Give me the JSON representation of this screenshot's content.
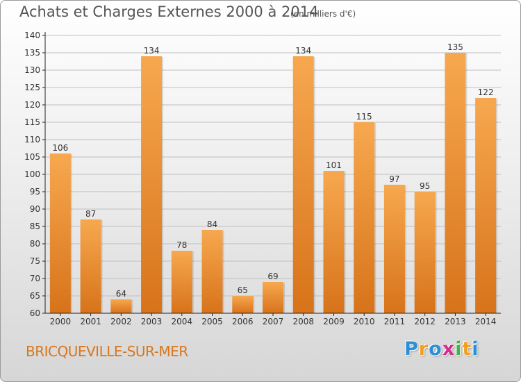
{
  "header": {
    "title": "Achats et Charges Externes 2000 à 2014",
    "subtitle": "(en milliers d'€)"
  },
  "footer": {
    "commune": "BRICQUEVILLE-SUR-MER",
    "logo_letters": [
      "P",
      "r",
      "o",
      "x",
      "i",
      "t",
      "i"
    ],
    "logo_colors": [
      "#2a8fd6",
      "#f0a020",
      "#2a8fd6",
      "#d42c8c",
      "#48b048",
      "#f0a020",
      "#2a8fd6"
    ]
  },
  "colors": {
    "bar_light": "#f7a84f",
    "bar_dark": "#d7731a",
    "axis": "#222222",
    "grid": "#bfbfbf"
  },
  "chart_data": {
    "type": "bar",
    "title": "Achats et Charges Externes 2000 à 2014",
    "subtitle": "(en milliers d'€)",
    "categories": [
      "2000",
      "2001",
      "2002",
      "2003",
      "2004",
      "2005",
      "2006",
      "2007",
      "2008",
      "2009",
      "2010",
      "2011",
      "2012",
      "2013",
      "2014"
    ],
    "values": [
      106,
      87,
      64,
      134,
      78,
      84,
      65,
      69,
      134,
      101,
      115,
      97,
      95,
      135,
      122
    ],
    "ylim": [
      60,
      140
    ],
    "yticks": [
      60,
      65,
      70,
      75,
      80,
      85,
      90,
      95,
      100,
      105,
      110,
      115,
      120,
      125,
      130,
      135,
      140
    ],
    "grid": true,
    "data_labels": true,
    "xlabel": "",
    "ylabel": ""
  }
}
